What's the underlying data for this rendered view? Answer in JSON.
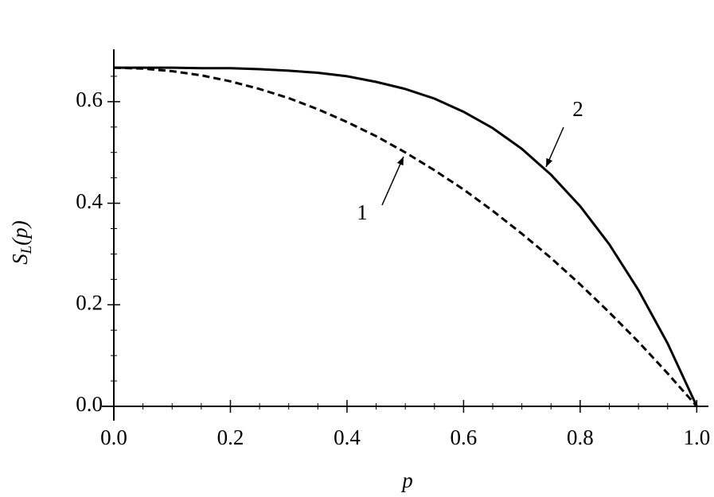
{
  "chart_data": {
    "type": "line",
    "x_label": "p",
    "y_label": [
      "S",
      "L",
      "(p)"
    ],
    "x": [
      0,
      0.05,
      0.1,
      0.15,
      0.2,
      0.25,
      0.3,
      0.35,
      0.4,
      0.45,
      0.5,
      0.55,
      0.6,
      0.65,
      0.7,
      0.75,
      0.8,
      0.85,
      0.9,
      0.95,
      1.0
    ],
    "series": [
      {
        "name": "1",
        "color": "#000000",
        "line_style": "dashed",
        "values": [
          0.667,
          0.665,
          0.66,
          0.652,
          0.64,
          0.625,
          0.607,
          0.585,
          0.56,
          0.532,
          0.5,
          0.465,
          0.427,
          0.385,
          0.34,
          0.292,
          0.24,
          0.185,
          0.127,
          0.065,
          0
        ]
      },
      {
        "name": "2",
        "color": "#000000",
        "line_style": "solid",
        "values": [
          0.667,
          0.667,
          0.667,
          0.666,
          0.666,
          0.664,
          0.661,
          0.657,
          0.65,
          0.639,
          0.625,
          0.606,
          0.58,
          0.548,
          0.507,
          0.456,
          0.394,
          0.319,
          0.229,
          0.124,
          0
        ]
      }
    ],
    "xlim": [
      0,
      1.02
    ],
    "ylim": [
      0,
      0.7
    ],
    "xticks": [
      {
        "value": 0,
        "label": "0.0"
      },
      0.2,
      0.4,
      0.6,
      0.8,
      {
        "value": 1,
        "label": "1.0"
      }
    ],
    "yticks": [
      {
        "value": 0,
        "label": "0.0"
      },
      0.2,
      0.4,
      0.6
    ],
    "xminorticks": [
      0.05,
      0.1,
      0.15,
      0.25,
      0.3,
      0.35,
      0.45,
      0.5,
      0.55,
      0.65,
      0.7,
      0.75,
      0.85,
      0.9,
      0.95
    ],
    "yminorticks": [
      0.05,
      0.1,
      0.15,
      0.25,
      0.3,
      0.35,
      0.45,
      0.5,
      0.55,
      0.65
    ],
    "grid": false
  }
}
